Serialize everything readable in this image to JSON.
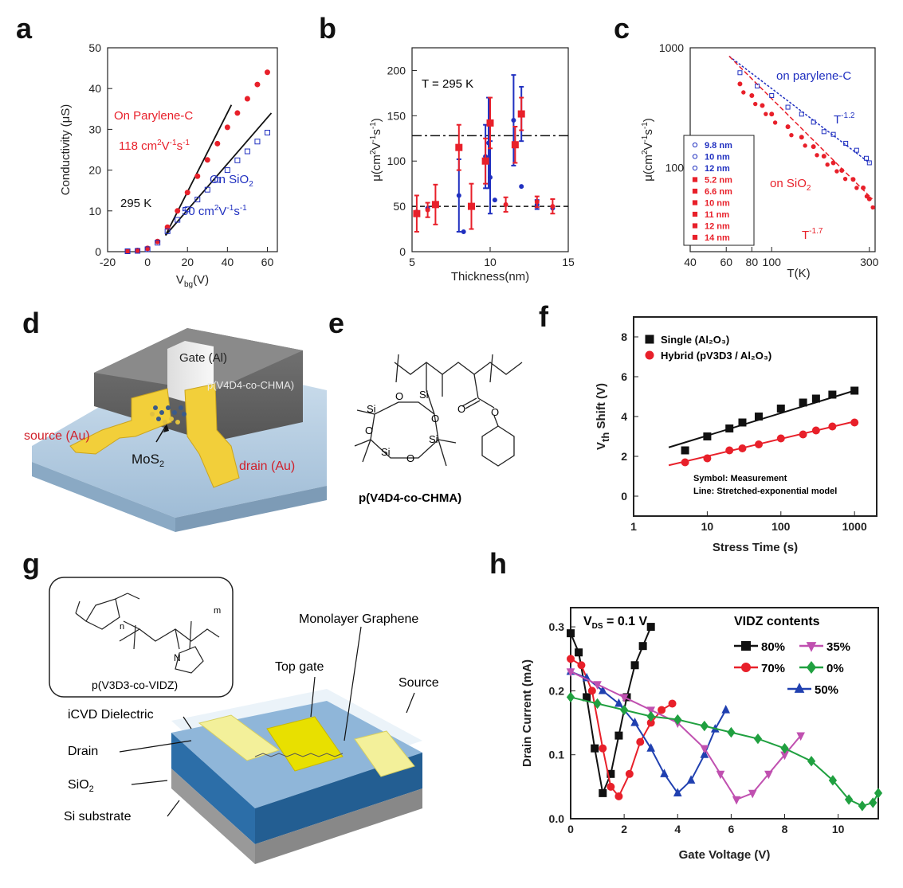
{
  "panels": {
    "a": {
      "label": "a"
    },
    "b": {
      "label": "b"
    },
    "c": {
      "label": "c"
    },
    "d": {
      "label": "d",
      "texts": {
        "gate": "Gate (Al)",
        "polymer": "p(V4D4-co-CHMA)",
        "source": "source (Au)",
        "drain": "drain (Au)",
        "channel": "MoS",
        "channel_sub": "2"
      }
    },
    "e": {
      "label": "e",
      "caption": "p(V4D4-co-CHMA)",
      "si": "Si",
      "o": "O"
    },
    "f": {
      "label": "f"
    },
    "g": {
      "label": "g",
      "texts": {
        "mono": "Monolayer Graphene",
        "topgate": "Top gate",
        "source": "Source",
        "icvd": "iCVD Dielectric",
        "drain": "Drain",
        "sio2": "SiO",
        "sio2_sub": "2",
        "si": "Si substrate",
        "inset": "p(V3D3-co-VIDZ)",
        "n": "n",
        "m": "m",
        "N": "N"
      }
    },
    "h": {
      "label": "h"
    }
  },
  "chart_data": [
    {
      "id": "a",
      "type": "scatter",
      "xlabel": "V",
      "xlabel_sub": "bg",
      "xlabel_suffix": "(V)",
      "ylabel": "Conductivity (μS)",
      "xlim": [
        -20,
        65
      ],
      "ylim": [
        0,
        50
      ],
      "xticks": [
        "-20",
        "0",
        "20",
        "40",
        "60"
      ],
      "yticks": [
        "0",
        "10",
        "20",
        "30",
        "40",
        "50"
      ],
      "annotations": {
        "parylene": "On Parylene-C",
        "mob_red": "118 cm",
        "temp": "295 K",
        "sio2": "On SiO",
        "sio2_sub": "2",
        "mob_blue": "50 cm",
        "mob_units_2": "2",
        "mob_units_V": "V",
        "mob_units_m1": "-1",
        "mob_units_s": "s"
      },
      "series": [
        {
          "name": "On Parylene-C",
          "color": "#e8202a",
          "x": [
            -10,
            -5,
            0,
            5,
            10,
            15,
            20,
            25,
            30,
            35,
            40,
            45,
            50,
            55,
            60
          ],
          "y": [
            0.1,
            0.3,
            0.8,
            2.5,
            6,
            10,
            14.5,
            18.5,
            22.5,
            26.5,
            30.5,
            34,
            37.5,
            41,
            44
          ]
        },
        {
          "name": "On SiO2",
          "color": "#2030c0",
          "x": [
            -10,
            -5,
            0,
            5,
            10,
            15,
            20,
            25,
            30,
            35,
            40,
            45,
            50,
            55,
            60
          ],
          "y": [
            0.1,
            0.2,
            0.6,
            2.2,
            5,
            7.8,
            10.4,
            12.8,
            15.2,
            17.6,
            20,
            22.4,
            24.6,
            27,
            29.2
          ]
        }
      ],
      "fits": [
        {
          "x": [
            9,
            42
          ],
          "y": [
            4,
            36
          ],
          "color": "#111"
        },
        {
          "x": [
            9,
            62
          ],
          "y": [
            4,
            34
          ],
          "color": "#111"
        }
      ]
    },
    {
      "id": "b",
      "type": "scatter",
      "xlabel": "Thickness(nm)",
      "ylabel": "μ(cm",
      "ylabel_parts": [
        "2",
        "V",
        "-1",
        "s",
        "-1",
        ")"
      ],
      "xlim": [
        5,
        15
      ],
      "ylim": [
        0,
        225
      ],
      "xticks": [
        "5",
        "10",
        "15"
      ],
      "yticks": [
        "0",
        "50",
        "100",
        "150",
        "200"
      ],
      "annotations": {
        "temp": "T = 295 K"
      },
      "hlines": [
        {
          "y": 128,
          "style": "dashdot"
        },
        {
          "y": 50,
          "style": "dash"
        }
      ],
      "series": [
        {
          "name": "parylene",
          "color": "#2030c0",
          "x": [
            8,
            9.7,
            9.9,
            10,
            11.5,
            12,
            13
          ],
          "y": [
            62,
            105,
            120,
            82,
            145,
            152,
            52
          ],
          "err": [
            40,
            35,
            50,
            40,
            50,
            30,
            5
          ]
        },
        {
          "name": "sio2-blue",
          "color": "#2030c0",
          "x": [
            5.3,
            6,
            6.5,
            8.3,
            8.8,
            10.3,
            12,
            14
          ],
          "y": [
            44,
            48,
            52,
            22,
            50,
            57,
            72,
            48
          ],
          "err": [
            0,
            0,
            0,
            0,
            0,
            0,
            0,
            0
          ]
        },
        {
          "name": "sio2-red",
          "color": "#e8202a",
          "x": [
            5.3,
            6,
            6.5,
            8,
            8.8,
            9.7,
            10,
            11,
            11.6,
            12,
            13,
            14
          ],
          "y": [
            42,
            46,
            52,
            115,
            50,
            100,
            142,
            52,
            118,
            152,
            55,
            50
          ],
          "err": [
            20,
            8,
            22,
            25,
            25,
            25,
            28,
            8,
            20,
            18,
            6,
            8
          ]
        }
      ]
    },
    {
      "id": "c",
      "type": "scatter",
      "xlabel": "T(K)",
      "ylabel": "μ(cm",
      "ylabel_parts": [
        "2",
        "V",
        "-1",
        "s",
        "-1",
        ")"
      ],
      "xscale": "log",
      "yscale": "log",
      "xlim": [
        40,
        320
      ],
      "ylim": [
        20,
        1000
      ],
      "xticks": [
        "40",
        "60",
        "80",
        "100",
        "300"
      ],
      "yticks": [
        "100",
        "1000"
      ],
      "annotations": {
        "parylene": "on parylene-C",
        "p_exp": "T",
        "p_exp_sup": "-1.2",
        "sio2": "on SiO",
        "sio2_sub": "2",
        "s_exp": "T",
        "s_exp_sup": "-1.7"
      },
      "legend": [
        "9.8 nm",
        "10 nm",
        "12 nm",
        "5.2 nm",
        "6.6 nm",
        "10 nm",
        "11 nm",
        "12 nm",
        "14 nm"
      ],
      "series": [
        {
          "name": "parylene",
          "color": "#2030c0",
          "x": [
            70,
            85,
            100,
            120,
            140,
            160,
            180,
            200,
            230,
            260,
            290,
            300
          ],
          "y": [
            620,
            480,
            400,
            320,
            280,
            240,
            200,
            190,
            160,
            140,
            120,
            110
          ]
        },
        {
          "name": "sio2",
          "color": "#e8202a",
          "x": [
            70,
            80,
            90,
            100,
            120,
            140,
            160,
            180,
            200,
            220,
            250,
            280,
            300
          ],
          "y": [
            500,
            400,
            330,
            280,
            220,
            180,
            150,
            125,
            110,
            95,
            80,
            68,
            55
          ]
        }
      ]
    },
    {
      "id": "f",
      "type": "scatter",
      "xlabel": "Stress Time (s)",
      "ylabel": "V",
      "ylabel_sub": "th",
      "ylabel_suffix": " Shift (V)",
      "xscale": "log",
      "xlim": [
        1,
        2000
      ],
      "ylim": [
        -1,
        9
      ],
      "xticks": [
        "1",
        "10",
        "100",
        "1000"
      ],
      "yticks": [
        "0",
        "2",
        "4",
        "6",
        "8"
      ],
      "legend": [
        "Single (Al₂O₃)",
        "Hybrid (pV3D3 / Al₂O₃)"
      ],
      "notes": [
        "Symbol: Measurement",
        "Line: Stretched-exponential model"
      ],
      "series": [
        {
          "name": "Single (Al2O3)",
          "color": "#111",
          "marker": "square",
          "x": [
            5,
            10,
            20,
            30,
            50,
            100,
            200,
            300,
            500,
            1000
          ],
          "y": [
            2.3,
            3.0,
            3.4,
            3.7,
            4.0,
            4.4,
            4.7,
            4.9,
            5.1,
            5.3
          ]
        },
        {
          "name": "Hybrid (pV3D3 / Al2O3)",
          "color": "#e8202a",
          "marker": "circle",
          "x": [
            5,
            10,
            20,
            30,
            50,
            100,
            200,
            300,
            500,
            1000
          ],
          "y": [
            1.7,
            1.9,
            2.3,
            2.4,
            2.6,
            2.9,
            3.1,
            3.3,
            3.5,
            3.7
          ]
        }
      ],
      "fits": [
        {
          "name": "Single",
          "x": [
            3,
            1000
          ],
          "y": [
            2.45,
            5.3
          ],
          "color": "#111"
        },
        {
          "name": "Hybrid",
          "x": [
            3,
            1000
          ],
          "y": [
            1.55,
            3.75
          ],
          "color": "#e8202a"
        }
      ]
    },
    {
      "id": "h",
      "type": "line",
      "xlabel": "Gate Voltage (V)",
      "ylabel": "Drain Current (mA)",
      "xlim": [
        0,
        11.5
      ],
      "ylim": [
        0,
        0.33
      ],
      "xticks": [
        "0",
        "2",
        "4",
        "6",
        "8",
        "10"
      ],
      "yticks": [
        "0.0",
        "0.1",
        "0.2",
        "0.3"
      ],
      "annotations": {
        "vds": "V",
        "vds_sub": "DS",
        "vds_val": " = 0.1 V",
        "legend_title": "VIDZ contents"
      },
      "series": [
        {
          "name": "80%",
          "color": "#111",
          "marker": "square",
          "x": [
            0,
            0.3,
            0.6,
            0.9,
            1.2,
            1.5,
            1.8,
            2.1,
            2.4,
            2.7,
            3.0
          ],
          "y": [
            0.29,
            0.26,
            0.19,
            0.11,
            0.04,
            0.07,
            0.13,
            0.19,
            0.24,
            0.27,
            0.3
          ]
        },
        {
          "name": "70%",
          "color": "#e8202a",
          "marker": "circle",
          "x": [
            0,
            0.4,
            0.8,
            1.2,
            1.5,
            1.8,
            2.2,
            2.6,
            3.0,
            3.4,
            3.8
          ],
          "y": [
            0.25,
            0.24,
            0.2,
            0.11,
            0.05,
            0.035,
            0.07,
            0.12,
            0.15,
            0.17,
            0.18
          ]
        },
        {
          "name": "50%",
          "color": "#2040b0",
          "marker": "triangle",
          "x": [
            0,
            0.6,
            1.2,
            1.8,
            2.4,
            3.0,
            3.5,
            4.0,
            4.5,
            5.0,
            5.4,
            5.8
          ],
          "y": [
            0.23,
            0.22,
            0.2,
            0.18,
            0.15,
            0.11,
            0.07,
            0.04,
            0.06,
            0.1,
            0.14,
            0.17
          ]
        },
        {
          "name": "35%",
          "color": "#c050b0",
          "marker": "triangle-down",
          "x": [
            0,
            1,
            2,
            3,
            4,
            5,
            5.6,
            6.2,
            6.8,
            7.4,
            8.0,
            8.6
          ],
          "y": [
            0.23,
            0.21,
            0.19,
            0.17,
            0.15,
            0.11,
            0.07,
            0.03,
            0.04,
            0.07,
            0.1,
            0.13
          ]
        },
        {
          "name": "0%",
          "color": "#20a040",
          "marker": "diamond",
          "x": [
            0,
            1,
            2,
            3,
            4,
            5,
            6,
            7,
            8,
            9,
            9.8,
            10.4,
            10.9,
            11.3,
            11.5
          ],
          "y": [
            0.19,
            0.18,
            0.17,
            0.16,
            0.155,
            0.145,
            0.135,
            0.125,
            0.11,
            0.09,
            0.06,
            0.03,
            0.02,
            0.025,
            0.04
          ]
        }
      ]
    }
  ]
}
